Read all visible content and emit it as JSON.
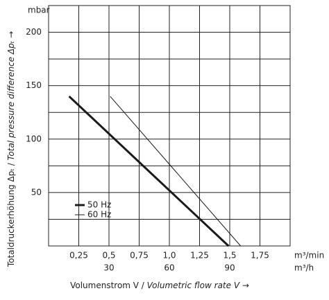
{
  "chart_data": {
    "type": "line",
    "y_unit": "mbar",
    "x_unit": "m³/min",
    "x2_unit": "m³/h",
    "y_label": [
      "Totaldruckerhöhung Δpₜ / ",
      "Total pressure difference Δpₜ →"
    ],
    "x_label": [
      "Volumenstrom V / ",
      "Volumetric flow rate V →"
    ],
    "xlim": [
      0,
      2
    ],
    "xticks": [
      {
        "value": 0.25,
        "label": "0,25"
      },
      {
        "value": 0.5,
        "label": "0,5"
      },
      {
        "value": 0.75,
        "label": "0,75"
      },
      {
        "value": 1.0,
        "label": "1,0"
      },
      {
        "value": 1.25,
        "label": "1,25"
      },
      {
        "value": 1.5,
        "label": "1,5"
      },
      {
        "value": 1.75,
        "label": "1,75"
      }
    ],
    "x2lim": [
      0,
      120
    ],
    "x2ticks": [
      30,
      60,
      90
    ],
    "ylim": [
      0,
      225
    ],
    "yticks": [
      50,
      100,
      150,
      200
    ],
    "minor_yticks": [
      25,
      75,
      125,
      175
    ],
    "grid": true,
    "series": [
      {
        "name": "50 Hz",
        "color": "#1a1a1a",
        "width": 3,
        "x": [
          0.17,
          1.49
        ],
        "values": [
          140,
          0
        ]
      },
      {
        "name": "60 Hz",
        "color": "#1a1a1a",
        "width": 1,
        "x": [
          0.51,
          1.59
        ],
        "values": [
          140,
          0
        ]
      }
    ]
  }
}
